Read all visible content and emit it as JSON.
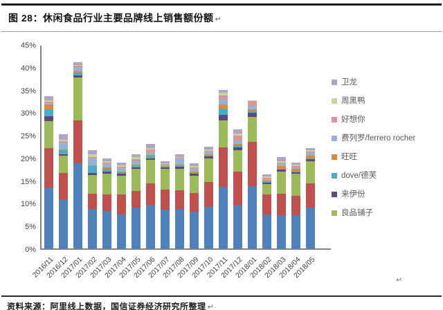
{
  "page": {
    "figure_title": "图 28：休闲食品行业主要品牌线上销售额份额",
    "return_mark": "↵",
    "source_note": "资料来源：阿里线上数据，国信证券经济研究所整理"
  },
  "chart_data": {
    "type": "bar",
    "stacked": true,
    "unit": "%",
    "title": "休闲食品行业主要品牌线上销售额份额",
    "xlabel": "",
    "ylabel": "",
    "ylim": [
      0,
      45
    ],
    "ytick_step": 5,
    "ytick_labels": [
      "0%",
      "5%",
      "10%",
      "15%",
      "20%",
      "25%",
      "30%",
      "35%",
      "40%",
      "45%"
    ],
    "grid": false,
    "legend_position": "right",
    "legend": [
      {
        "label": "卫龙",
        "color": "#b3a2c7"
      },
      {
        "label": "周黑鸭",
        "color": "#c3d69b"
      },
      {
        "label": "好想你",
        "color": "#d99694"
      },
      {
        "label": "费列罗/ferrero rocher",
        "color": "#95b3d7"
      },
      {
        "label": "旺旺",
        "color": "#e0883a"
      },
      {
        "label": "dove/德芙",
        "color": "#4bacc6"
      },
      {
        "label": "来伊份",
        "color": "#5f497a"
      },
      {
        "label": "良品铺子",
        "color": "#9bbb59"
      }
    ],
    "categories": [
      "2016/11",
      "2016/12",
      "2017/01",
      "2017/02",
      "2017/03",
      "2017/04",
      "2017/05",
      "2017/06",
      "2017/07",
      "2017/08",
      "2017/09",
      "2017/10",
      "2017/11",
      "2017/12",
      "2018/01",
      "2018/02",
      "2018/03",
      "2018/04",
      "2018/05"
    ],
    "series": [
      {
        "name": "unlabeled_blue",
        "in_legend": false,
        "color": "#4f81bd",
        "values": [
          13.5,
          10.8,
          18.8,
          8.7,
          8.2,
          7.5,
          9.0,
          9.6,
          8.5,
          8.7,
          8.1,
          9.1,
          13.6,
          9.6,
          13.7,
          7.5,
          7.3,
          7.3,
          9.0
        ]
      },
      {
        "name": "unlabeled_red",
        "in_legend": false,
        "color": "#c0504d",
        "values": [
          8.6,
          5.8,
          9.5,
          3.4,
          3.7,
          4.4,
          3.7,
          4.8,
          4.4,
          4.1,
          4.1,
          5.6,
          8.7,
          7.4,
          9.8,
          4.4,
          4.8,
          4.3,
          5.3
        ]
      },
      {
        "name": "良品铺子",
        "in_legend": true,
        "color": "#9bbb59",
        "values": [
          5.9,
          3.8,
          9.4,
          4.1,
          4.6,
          4.1,
          4.8,
          5.1,
          4.6,
          4.8,
          3.8,
          5.2,
          5.9,
          4.6,
          5.5,
          2.3,
          4.9,
          4.9,
          5.0
        ]
      },
      {
        "name": "来伊份",
        "in_legend": true,
        "color": "#5f497a",
        "values": [
          1.2,
          0.4,
          0.4,
          0.5,
          0.5,
          0.5,
          0.4,
          0.4,
          0.3,
          0.4,
          0.5,
          0.4,
          1.3,
          0.7,
          0.9,
          0.3,
          0.4,
          0.3,
          0.4
        ]
      },
      {
        "name": "dove/德芙",
        "in_legend": true,
        "color": "#4bacc6",
        "values": [
          1.4,
          0.8,
          0.7,
          1.4,
          0.5,
          0.3,
          0.3,
          0.4,
          0.2,
          0.2,
          0.2,
          0.2,
          1.3,
          0.4,
          0.5,
          0.2,
          0.2,
          0.2,
          0.2
        ]
      },
      {
        "name": "旺旺",
        "in_legend": true,
        "color": "#e0883a",
        "values": [
          1.1,
          0.2,
          0.2,
          0.2,
          0.3,
          0.2,
          0.3,
          0.3,
          0.1,
          0.2,
          0.2,
          0.2,
          0.9,
          0.3,
          0.2,
          0.2,
          0.6,
          0.5,
          0.6
        ]
      },
      {
        "name": "费列罗/ferrero rocher",
        "in_legend": true,
        "color": "#95b3d7",
        "values": [
          0.4,
          1.5,
          0.8,
          1.5,
          0.8,
          0.7,
          0.7,
          0.6,
          0.3,
          1.4,
          0.6,
          0.6,
          1.2,
          0.8,
          0.8,
          0.4,
          0.4,
          0.4,
          0.5
        ]
      },
      {
        "name": "好想你",
        "in_legend": true,
        "color": "#d99694",
        "values": [
          0.3,
          0.3,
          0.5,
          0.4,
          0.3,
          0.3,
          0.5,
          0.6,
          0.2,
          0.2,
          0.3,
          0.3,
          0.8,
          1.1,
          1.1,
          0.3,
          0.3,
          0.3,
          0.3
        ]
      },
      {
        "name": "周黑鸭",
        "in_legend": true,
        "color": "#c3d69b",
        "values": [
          0.3,
          0.4,
          0.2,
          0.5,
          0.3,
          0.3,
          0.4,
          0.4,
          0.2,
          0.2,
          0.3,
          0.3,
          0.6,
          0.4,
          0.1,
          0.3,
          0.4,
          0.3,
          0.4
        ]
      },
      {
        "name": "卫龙",
        "in_legend": true,
        "color": "#b3a2c7",
        "values": [
          0.8,
          1.2,
          0.5,
          1.0,
          0.6,
          0.6,
          0.7,
          0.8,
          0.5,
          0.6,
          0.7,
          0.6,
          0.7,
          0.9,
          0.1,
          0.4,
          0.8,
          0.5,
          0.5
        ]
      }
    ]
  }
}
